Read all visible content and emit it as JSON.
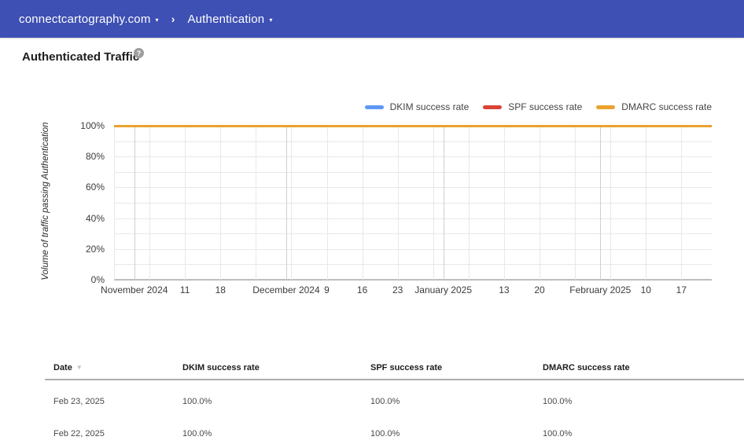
{
  "header": {
    "bar_color": "#3E50B4",
    "domain": "connectcartography.com",
    "section": "Authentication",
    "caret": "▾",
    "separator": "›"
  },
  "page": {
    "title": "Authenticated Traffic",
    "help_glyph": "?"
  },
  "chart_data": {
    "type": "line",
    "title": "Authenticated Traffic",
    "ylabel": "Volume of traffic passing Authentication",
    "ylim": [
      0,
      100
    ],
    "y_tick_labels": [
      "0%",
      "20%",
      "40%",
      "60%",
      "80%",
      "100%"
    ],
    "grid": true,
    "legend_position": "top-right",
    "series": [
      {
        "name": "DKIM success rate",
        "color": "#5E97F6",
        "constant_value_percent": 100.0
      },
      {
        "name": "SPF success rate",
        "color": "#DB4437",
        "constant_value_percent": 100.0
      },
      {
        "name": "DMARC success rate",
        "color": "#EBA22E",
        "constant_value_percent": 100.0
      }
    ],
    "x_axis": {
      "total_days": 118,
      "labeled_ticks": [
        {
          "label": "November 2024",
          "day": 4
        },
        {
          "label": "11",
          "day": 14
        },
        {
          "label": "18",
          "day": 21
        },
        {
          "label": "December 2024",
          "day": 34
        },
        {
          "label": "9",
          "day": 42
        },
        {
          "label": "16",
          "day": 49
        },
        {
          "label": "23",
          "day": 56
        },
        {
          "label": "January 2025",
          "day": 65
        },
        {
          "label": "13",
          "day": 77
        },
        {
          "label": "20",
          "day": 84
        },
        {
          "label": "February 2025",
          "day": 96
        },
        {
          "label": "10",
          "day": 105
        },
        {
          "label": "17",
          "day": 112
        }
      ],
      "minor_gridline_days": [
        7,
        14,
        21,
        28,
        35,
        42,
        49,
        56,
        63,
        70,
        77,
        84,
        91,
        98,
        105,
        112
      ],
      "major_gridline_days": [
        4,
        34,
        65,
        96
      ]
    }
  },
  "table": {
    "columns": [
      "Date",
      "DKIM success rate",
      "SPF success rate",
      "DMARC success rate"
    ],
    "sorted_by": "Date",
    "sort_direction": "descending",
    "sort_glyph": "▼",
    "rows": [
      [
        "Feb 23, 2025",
        "100.0%",
        "100.0%",
        "100.0%"
      ],
      [
        "Feb 22, 2025",
        "100.0%",
        "100.0%",
        "100.0%"
      ]
    ]
  }
}
